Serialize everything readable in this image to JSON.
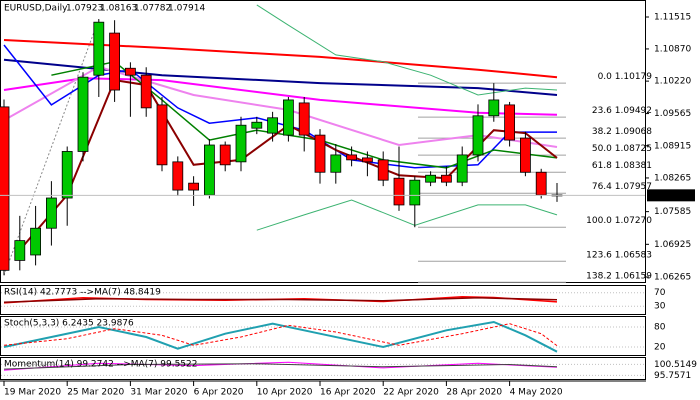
{
  "chart_data": {
    "type": "candlestick",
    "title": "EURUSD,Daily",
    "categories": [
      "19 Mar 2020",
      null,
      null,
      null,
      "25 Mar 2020",
      null,
      null,
      null,
      "31 Mar 2020",
      null,
      null,
      null,
      "6 Apr 2020",
      null,
      null,
      null,
      "10 Apr 2020",
      null,
      null,
      null,
      "16 Apr 2020",
      null,
      null,
      null,
      "22 Apr 2020",
      null,
      null,
      null,
      "28 Apr 2020",
      null,
      null,
      null,
      "4 May 2020",
      null,
      null,
      null
    ],
    "open": [
      1.097,
      1.066,
      1.0671,
      1.0725,
      1.0786,
      1.088,
      1.1034,
      1.1119,
      1.1048,
      1.1034,
      1.0974,
      1.0859,
      1.0816,
      1.0792,
      1.0893,
      1.0859,
      1.0927,
      1.0917,
      1.0913,
      1.0978,
      1.0913,
      1.0838,
      1.0873,
      1.0867,
      1.0863,
      1.0826,
      1.0772,
      1.0818,
      1.0832,
      1.0818,
      1.0873,
      1.0952,
      1.0974,
      1.0907,
      1.0838,
      1.07923
    ],
    "high": [
      1.0985,
      1.075,
      1.077,
      1.082,
      1.089,
      1.104,
      1.1147,
      1.1145,
      1.106,
      1.105,
      1.099,
      1.087,
      1.083,
      1.0905,
      1.09,
      1.095,
      1.095,
      1.096,
      1.099,
      1.099,
      1.0925,
      1.0895,
      1.089,
      1.088,
      1.088,
      1.089,
      1.083,
      1.084,
      1.085,
      1.089,
      1.0975,
      1.10179,
      1.098,
      1.092,
      1.0845,
      1.08163
    ],
    "low": [
      1.063,
      1.064,
      1.065,
      1.069,
      1.073,
      1.086,
      1.099,
      1.098,
      1.095,
      1.095,
      1.084,
      1.079,
      1.077,
      1.0785,
      1.084,
      1.084,
      1.0915,
      1.09,
      1.09,
      1.088,
      1.0815,
      1.0815,
      1.085,
      1.083,
      1.081,
      1.076,
      1.0727,
      1.081,
      1.081,
      1.081,
      1.086,
      1.094,
      1.089,
      1.083,
      1.0785,
      1.07782
    ],
    "close": [
      1.064,
      1.07,
      1.0725,
      1.0786,
      1.088,
      1.103,
      1.1141,
      1.1004,
      1.1034,
      1.0968,
      1.0853,
      1.0802,
      1.0802,
      1.0893,
      1.0853,
      1.0933,
      1.0939,
      1.0948,
      1.0984,
      1.0913,
      1.0838,
      1.0873,
      1.0863,
      1.0859,
      1.0822,
      1.0772,
      1.0822,
      1.0832,
      1.0818,
      1.0873,
      1.0952,
      1.0984,
      1.0903,
      1.0838,
      1.0792,
      1.07914
    ],
    "up_color": "#00c800",
    "down_color": "#ff0000",
    "ylim": [
      1.06144,
      1.11858
    ],
    "yticks": [
      1.11515,
      {
        "value": 1.1087,
        "label": "1.10870"
      },
      {
        "value": 1.1022,
        "label": "1.10220"
      },
      1.09565,
      1.08915,
      1.08265,
      1.07585,
      1.06925,
      1.06265
    ],
    "series": [
      {
        "color": "#ff0000",
        "width": 2,
        "x": [
          0,
          10,
          20,
          30,
          35
        ],
        "values": [
          1.1105,
          1.1089,
          1.1071,
          1.1045,
          1.103
        ]
      },
      {
        "color": "#00008b",
        "width": 2,
        "x": [
          0,
          10,
          20,
          30,
          35
        ],
        "values": [
          1.1065,
          1.1034,
          1.1018,
          1.1008,
          1.0994
        ]
      },
      {
        "color": "#ff00ff",
        "width": 2,
        "x": [
          0,
          5,
          10,
          20,
          30,
          35
        ],
        "values": [
          1.1004,
          1.1028,
          1.1024,
          1.0984,
          1.0958,
          1.0954
        ]
      },
      {
        "color": "#ee82ee",
        "width": 2,
        "x": [
          0,
          6,
          12,
          18,
          25,
          30,
          35
        ],
        "values": [
          1.0943,
          1.1051,
          1.0994,
          1.0964,
          1.0893,
          1.0913,
          1.0889
        ]
      },
      {
        "color": "#0000ff",
        "width": 1.5,
        "x": [
          0,
          3,
          6,
          8,
          11,
          13,
          16,
          19,
          22,
          26,
          30,
          32,
          35
        ],
        "values": [
          1.1095,
          1.0974,
          1.1034,
          1.1045,
          1.0968,
          1.0937,
          1.0948,
          1.0923,
          1.0863,
          1.0847,
          1.0853,
          1.0919,
          1.0919
        ]
      },
      {
        "color": "#008000",
        "width": 1.5,
        "x": [
          3,
          7,
          10,
          13,
          16,
          20,
          24,
          28,
          31,
          35
        ],
        "values": [
          1.1034,
          1.1061,
          1.0984,
          1.0903,
          1.0923,
          1.0903,
          1.0863,
          1.0847,
          1.0883,
          1.0867
        ]
      },
      {
        "color": "#8b0000",
        "width": 2,
        "x": [
          1,
          4,
          7,
          9,
          12,
          15,
          18,
          21,
          25,
          28,
          31,
          33,
          35
        ],
        "values": [
          1.0681,
          1.0792,
          1.1024,
          1.1014,
          1.0853,
          1.0863,
          1.0933,
          1.0883,
          1.0832,
          1.0826,
          1.0923,
          1.0917,
          1.0867
        ]
      },
      {
        "color": "#3cb371",
        "width": 1,
        "x": [
          16,
          18,
          21,
          24,
          27,
          30,
          33,
          35
        ],
        "values": [
          1.1176,
          1.1135,
          1.1075,
          1.1061,
          1.1034,
          1.0994,
          1.1008,
          1.1004
        ]
      },
      {
        "color": "#3cb371",
        "width": 1,
        "x": [
          16,
          19,
          22,
          26,
          30,
          33,
          35
        ],
        "values": [
          1.0721,
          1.0752,
          1.0782,
          1.0731,
          1.0772,
          1.0772,
          1.0752
        ]
      }
    ],
    "fib_levels": [
      {
        "ratio": "0.0",
        "price": 1.10179
      },
      {
        "ratio": "23.6",
        "price": 1.09492
      },
      {
        "ratio": "38.2",
        "price": 1.09068
      },
      {
        "ratio": "50.0",
        "price": 1.08725
      },
      {
        "ratio": "61.8",
        "price": 1.08381
      },
      {
        "ratio": "76.4",
        "price": 1.07957
      },
      {
        "ratio": "100.0",
        "price": {
          "value": 1.0727,
          "label": "1.07270"
        }
      },
      {
        "ratio": "123.6",
        "price": 1.06583
      },
      {
        "ratio": "138.2",
        "price": 1.06159
      }
    ],
    "indicators": [
      {
        "label": "RSI(14) 42.7773 -->MA(7) 48.8419",
        "ylim": [
          7,
          90
        ],
        "yticks": [
          70,
          30
        ],
        "series": [
          {
            "color": "#ff0000",
            "width": 1.5,
            "x": [
              0,
              5,
              9,
              14,
              19,
              24,
              29,
              31,
              35
            ],
            "values": [
              40,
              55,
              50,
              48,
              52,
              44,
              58,
              56,
              43
            ]
          },
          {
            "color": "#8b0000",
            "width": 1.5,
            "x": [
              0,
              6,
              12,
              18,
              24,
              30,
              35
            ],
            "values": [
              42,
              52,
              50,
              50,
              46,
              55,
              49
            ]
          }
        ]
      },
      {
        "label": "Stoch(5,3,3) 6.2435 23.9876",
        "ylim": [
          -4,
          110
        ],
        "yticks": [
          80,
          20
        ],
        "series": [
          {
            "color": "#20a0b0",
            "width": 2,
            "x": [
              0,
              3,
              6,
              9,
              11,
              14,
              17,
              20,
              24,
              28,
              31,
              33,
              35
            ],
            "values": [
              20,
              50,
              80,
              50,
              15,
              60,
              90,
              60,
              20,
              70,
              95,
              55,
              6
            ]
          },
          {
            "color": "#ff0000",
            "width": 1,
            "dashed": true,
            "x": [
              0,
              4,
              7,
              10,
              12,
              15,
              18,
              21,
              25,
              29,
              32,
              34,
              35
            ],
            "values": [
              25,
              45,
              75,
              55,
              25,
              50,
              85,
              65,
              25,
              60,
              90,
              60,
              24
            ]
          }
        ]
      },
      {
        "label": "Momentum(14) 99.2742 -->MA(7) 99.5522",
        "ylim": [
          94.2,
          103.3
        ],
        "yticks": [
          100.5149,
          95.7571
        ],
        "series": [
          {
            "color": "#ff00ff",
            "width": 1,
            "x": [
              0,
              6,
              12,
              18,
              24,
              30,
              35
            ],
            "values": [
              98,
              101,
              100,
              101.5,
              99,
              101,
              99.27
            ]
          },
          {
            "color": "#404040",
            "width": 1,
            "x": [
              0,
              8,
              16,
              24,
              32,
              35
            ],
            "values": [
              98.5,
              100.5,
              100.8,
              99.5,
              100.5,
              99.55
            ]
          }
        ]
      }
    ]
  }
}
